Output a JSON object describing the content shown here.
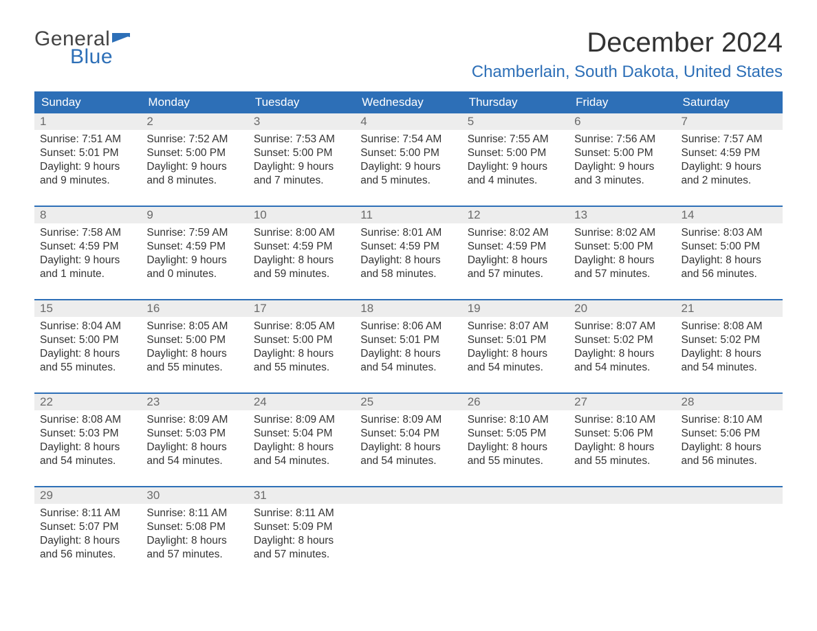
{
  "logo": {
    "word1": "General",
    "word2": "Blue"
  },
  "title": "December 2024",
  "location": "Chamberlain, South Dakota, United States",
  "colors": {
    "accent": "#2d6fb7",
    "header_text": "#ffffff",
    "daynum_bg": "#ededed",
    "daynum_text": "#6a6a6a",
    "body_text": "#333333",
    "background": "#ffffff"
  },
  "daysOfWeek": [
    "Sunday",
    "Monday",
    "Tuesday",
    "Wednesday",
    "Thursday",
    "Friday",
    "Saturday"
  ],
  "weeks": [
    [
      {
        "n": "1",
        "sunrise": "Sunrise: 7:51 AM",
        "sunset": "Sunset: 5:01 PM",
        "daylight": "Daylight: 9 hours and 9 minutes."
      },
      {
        "n": "2",
        "sunrise": "Sunrise: 7:52 AM",
        "sunset": "Sunset: 5:00 PM",
        "daylight": "Daylight: 9 hours and 8 minutes."
      },
      {
        "n": "3",
        "sunrise": "Sunrise: 7:53 AM",
        "sunset": "Sunset: 5:00 PM",
        "daylight": "Daylight: 9 hours and 7 minutes."
      },
      {
        "n": "4",
        "sunrise": "Sunrise: 7:54 AM",
        "sunset": "Sunset: 5:00 PM",
        "daylight": "Daylight: 9 hours and 5 minutes."
      },
      {
        "n": "5",
        "sunrise": "Sunrise: 7:55 AM",
        "sunset": "Sunset: 5:00 PM",
        "daylight": "Daylight: 9 hours and 4 minutes."
      },
      {
        "n": "6",
        "sunrise": "Sunrise: 7:56 AM",
        "sunset": "Sunset: 5:00 PM",
        "daylight": "Daylight: 9 hours and 3 minutes."
      },
      {
        "n": "7",
        "sunrise": "Sunrise: 7:57 AM",
        "sunset": "Sunset: 4:59 PM",
        "daylight": "Daylight: 9 hours and 2 minutes."
      }
    ],
    [
      {
        "n": "8",
        "sunrise": "Sunrise: 7:58 AM",
        "sunset": "Sunset: 4:59 PM",
        "daylight": "Daylight: 9 hours and 1 minute."
      },
      {
        "n": "9",
        "sunrise": "Sunrise: 7:59 AM",
        "sunset": "Sunset: 4:59 PM",
        "daylight": "Daylight: 9 hours and 0 minutes."
      },
      {
        "n": "10",
        "sunrise": "Sunrise: 8:00 AM",
        "sunset": "Sunset: 4:59 PM",
        "daylight": "Daylight: 8 hours and 59 minutes."
      },
      {
        "n": "11",
        "sunrise": "Sunrise: 8:01 AM",
        "sunset": "Sunset: 4:59 PM",
        "daylight": "Daylight: 8 hours and 58 minutes."
      },
      {
        "n": "12",
        "sunrise": "Sunrise: 8:02 AM",
        "sunset": "Sunset: 4:59 PM",
        "daylight": "Daylight: 8 hours and 57 minutes."
      },
      {
        "n": "13",
        "sunrise": "Sunrise: 8:02 AM",
        "sunset": "Sunset: 5:00 PM",
        "daylight": "Daylight: 8 hours and 57 minutes."
      },
      {
        "n": "14",
        "sunrise": "Sunrise: 8:03 AM",
        "sunset": "Sunset: 5:00 PM",
        "daylight": "Daylight: 8 hours and 56 minutes."
      }
    ],
    [
      {
        "n": "15",
        "sunrise": "Sunrise: 8:04 AM",
        "sunset": "Sunset: 5:00 PM",
        "daylight": "Daylight: 8 hours and 55 minutes."
      },
      {
        "n": "16",
        "sunrise": "Sunrise: 8:05 AM",
        "sunset": "Sunset: 5:00 PM",
        "daylight": "Daylight: 8 hours and 55 minutes."
      },
      {
        "n": "17",
        "sunrise": "Sunrise: 8:05 AM",
        "sunset": "Sunset: 5:00 PM",
        "daylight": "Daylight: 8 hours and 55 minutes."
      },
      {
        "n": "18",
        "sunrise": "Sunrise: 8:06 AM",
        "sunset": "Sunset: 5:01 PM",
        "daylight": "Daylight: 8 hours and 54 minutes."
      },
      {
        "n": "19",
        "sunrise": "Sunrise: 8:07 AM",
        "sunset": "Sunset: 5:01 PM",
        "daylight": "Daylight: 8 hours and 54 minutes."
      },
      {
        "n": "20",
        "sunrise": "Sunrise: 8:07 AM",
        "sunset": "Sunset: 5:02 PM",
        "daylight": "Daylight: 8 hours and 54 minutes."
      },
      {
        "n": "21",
        "sunrise": "Sunrise: 8:08 AM",
        "sunset": "Sunset: 5:02 PM",
        "daylight": "Daylight: 8 hours and 54 minutes."
      }
    ],
    [
      {
        "n": "22",
        "sunrise": "Sunrise: 8:08 AM",
        "sunset": "Sunset: 5:03 PM",
        "daylight": "Daylight: 8 hours and 54 minutes."
      },
      {
        "n": "23",
        "sunrise": "Sunrise: 8:09 AM",
        "sunset": "Sunset: 5:03 PM",
        "daylight": "Daylight: 8 hours and 54 minutes."
      },
      {
        "n": "24",
        "sunrise": "Sunrise: 8:09 AM",
        "sunset": "Sunset: 5:04 PM",
        "daylight": "Daylight: 8 hours and 54 minutes."
      },
      {
        "n": "25",
        "sunrise": "Sunrise: 8:09 AM",
        "sunset": "Sunset: 5:04 PM",
        "daylight": "Daylight: 8 hours and 54 minutes."
      },
      {
        "n": "26",
        "sunrise": "Sunrise: 8:10 AM",
        "sunset": "Sunset: 5:05 PM",
        "daylight": "Daylight: 8 hours and 55 minutes."
      },
      {
        "n": "27",
        "sunrise": "Sunrise: 8:10 AM",
        "sunset": "Sunset: 5:06 PM",
        "daylight": "Daylight: 8 hours and 55 minutes."
      },
      {
        "n": "28",
        "sunrise": "Sunrise: 8:10 AM",
        "sunset": "Sunset: 5:06 PM",
        "daylight": "Daylight: 8 hours and 56 minutes."
      }
    ],
    [
      {
        "n": "29",
        "sunrise": "Sunrise: 8:11 AM",
        "sunset": "Sunset: 5:07 PM",
        "daylight": "Daylight: 8 hours and 56 minutes."
      },
      {
        "n": "30",
        "sunrise": "Sunrise: 8:11 AM",
        "sunset": "Sunset: 5:08 PM",
        "daylight": "Daylight: 8 hours and 57 minutes."
      },
      {
        "n": "31",
        "sunrise": "Sunrise: 8:11 AM",
        "sunset": "Sunset: 5:09 PM",
        "daylight": "Daylight: 8 hours and 57 minutes."
      },
      {
        "n": "",
        "sunrise": "",
        "sunset": "",
        "daylight": ""
      },
      {
        "n": "",
        "sunrise": "",
        "sunset": "",
        "daylight": ""
      },
      {
        "n": "",
        "sunrise": "",
        "sunset": "",
        "daylight": ""
      },
      {
        "n": "",
        "sunrise": "",
        "sunset": "",
        "daylight": ""
      }
    ]
  ]
}
